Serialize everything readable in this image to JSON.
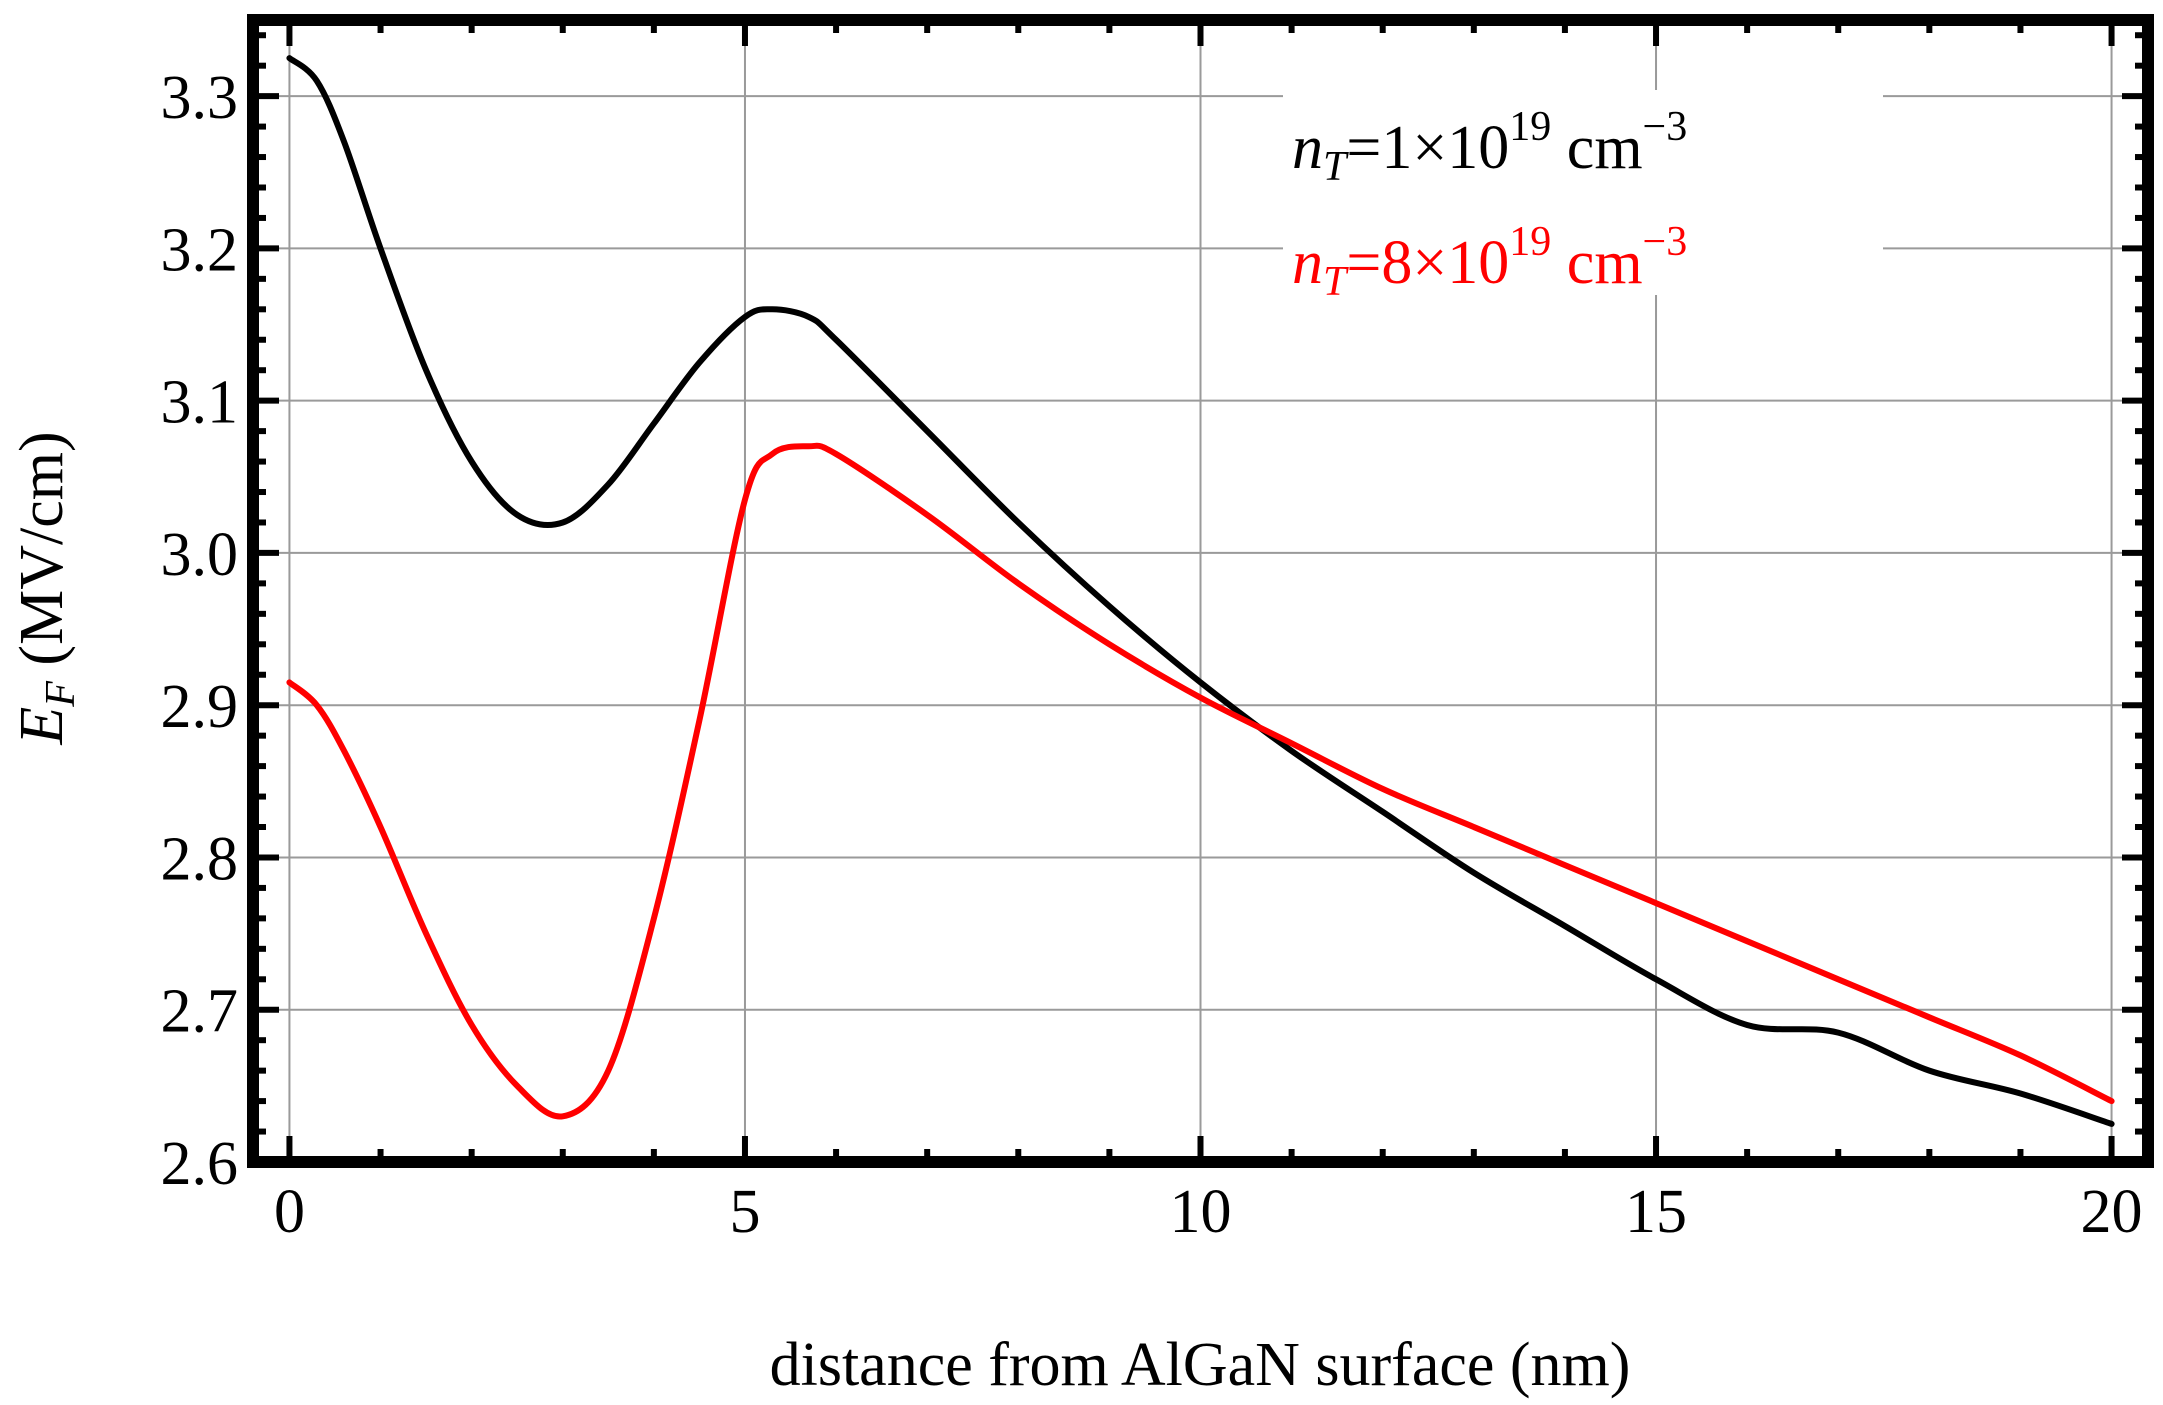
{
  "chart_data": {
    "type": "line",
    "title": "",
    "xlabel": "distance from AlGaN surface (nm)",
    "ylabel": {
      "symbol": "E",
      "subscript": "F",
      "units": " (MV/cm)"
    },
    "xlim": [
      -0.4,
      20.4
    ],
    "ylim": [
      2.6,
      3.35
    ],
    "x_ticks": [
      0,
      5,
      10,
      15,
      20
    ],
    "x_tick_labels": [
      "0",
      "5",
      "10",
      "15",
      "20"
    ],
    "y_ticks": [
      2.6,
      2.7,
      2.8,
      2.9,
      3.0,
      3.1,
      3.2,
      3.3
    ],
    "y_tick_labels": [
      "2.6",
      "2.7",
      "2.8",
      "2.9",
      "3.0",
      "3.1",
      "3.2",
      "3.3"
    ],
    "grid": true,
    "legend_position": "top-right",
    "series": [
      {
        "name": "nT=1×10^19 cm^-3",
        "legend": {
          "symbol": "n",
          "subscript": "T",
          "mantissa": "=1×10",
          "exponent": "19",
          "unit": " cm",
          "unit_exponent": "−3"
        },
        "color": "#000000",
        "x": [
          0,
          0.3,
          0.6,
          1,
          1.5,
          2,
          2.5,
          3,
          3.5,
          4,
          4.5,
          5,
          5.3,
          5.7,
          6,
          7,
          8,
          9,
          10,
          11,
          12,
          13,
          14,
          15,
          16,
          17,
          18,
          19,
          20
        ],
        "y": [
          3.325,
          3.31,
          3.27,
          3.2,
          3.12,
          3.06,
          3.025,
          3.02,
          3.045,
          3.085,
          3.125,
          3.155,
          3.16,
          3.155,
          3.14,
          3.08,
          3.02,
          2.965,
          2.915,
          2.87,
          2.83,
          2.79,
          2.755,
          2.72,
          2.69,
          2.685,
          2.66,
          2.645,
          2.625
        ]
      },
      {
        "name": "nT=8×10^19 cm^-3",
        "legend": {
          "symbol": "n",
          "subscript": "T",
          "mantissa": "=8×10",
          "exponent": "19",
          "unit": " cm",
          "unit_exponent": "−3"
        },
        "color": "#ff0000",
        "x": [
          0,
          0.3,
          0.6,
          1,
          1.5,
          2,
          2.5,
          3,
          3.5,
          4,
          4.5,
          5,
          5.3,
          5.7,
          6,
          7,
          8,
          9,
          10,
          11,
          12,
          13,
          14,
          15,
          16,
          17,
          18,
          19,
          20
        ],
        "y": [
          2.915,
          2.9,
          2.87,
          2.82,
          2.75,
          2.69,
          2.65,
          2.63,
          2.66,
          2.76,
          2.89,
          3.035,
          3.065,
          3.07,
          3.065,
          3.025,
          2.98,
          2.94,
          2.905,
          2.875,
          2.845,
          2.82,
          2.795,
          2.77,
          2.745,
          2.72,
          2.695,
          2.67,
          2.64
        ]
      }
    ]
  }
}
